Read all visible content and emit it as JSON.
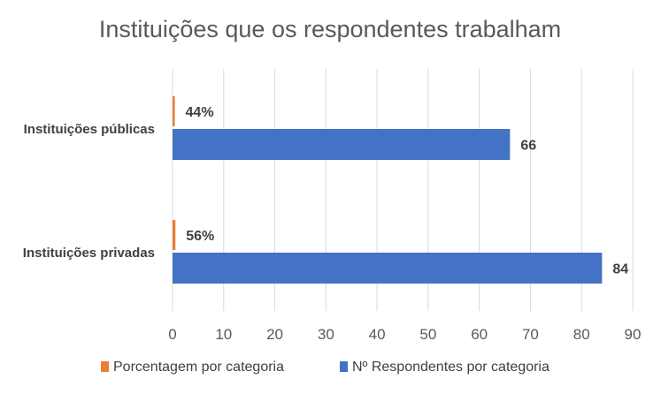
{
  "chart_data": {
    "type": "bar",
    "orientation": "horizontal",
    "title": "Instituições que os respondentes trabalham",
    "categories": [
      "Instituições públicas",
      "Instituições privadas"
    ],
    "series": [
      {
        "name": "Porcentagem por categoria",
        "values": [
          0.44,
          0.56
        ],
        "labels": [
          "44%",
          "56%"
        ],
        "color": "#ED7D31"
      },
      {
        "name": "Nº Respondentes por categoria",
        "values": [
          66,
          84
        ],
        "labels": [
          "66",
          "84"
        ],
        "color": "#4472C4"
      }
    ],
    "xlim": [
      0,
      90
    ],
    "xticks": [
      "0",
      "10",
      "20",
      "30",
      "40",
      "50",
      "60",
      "70",
      "80",
      "90"
    ],
    "grid": true,
    "legend_position": "bottom"
  }
}
